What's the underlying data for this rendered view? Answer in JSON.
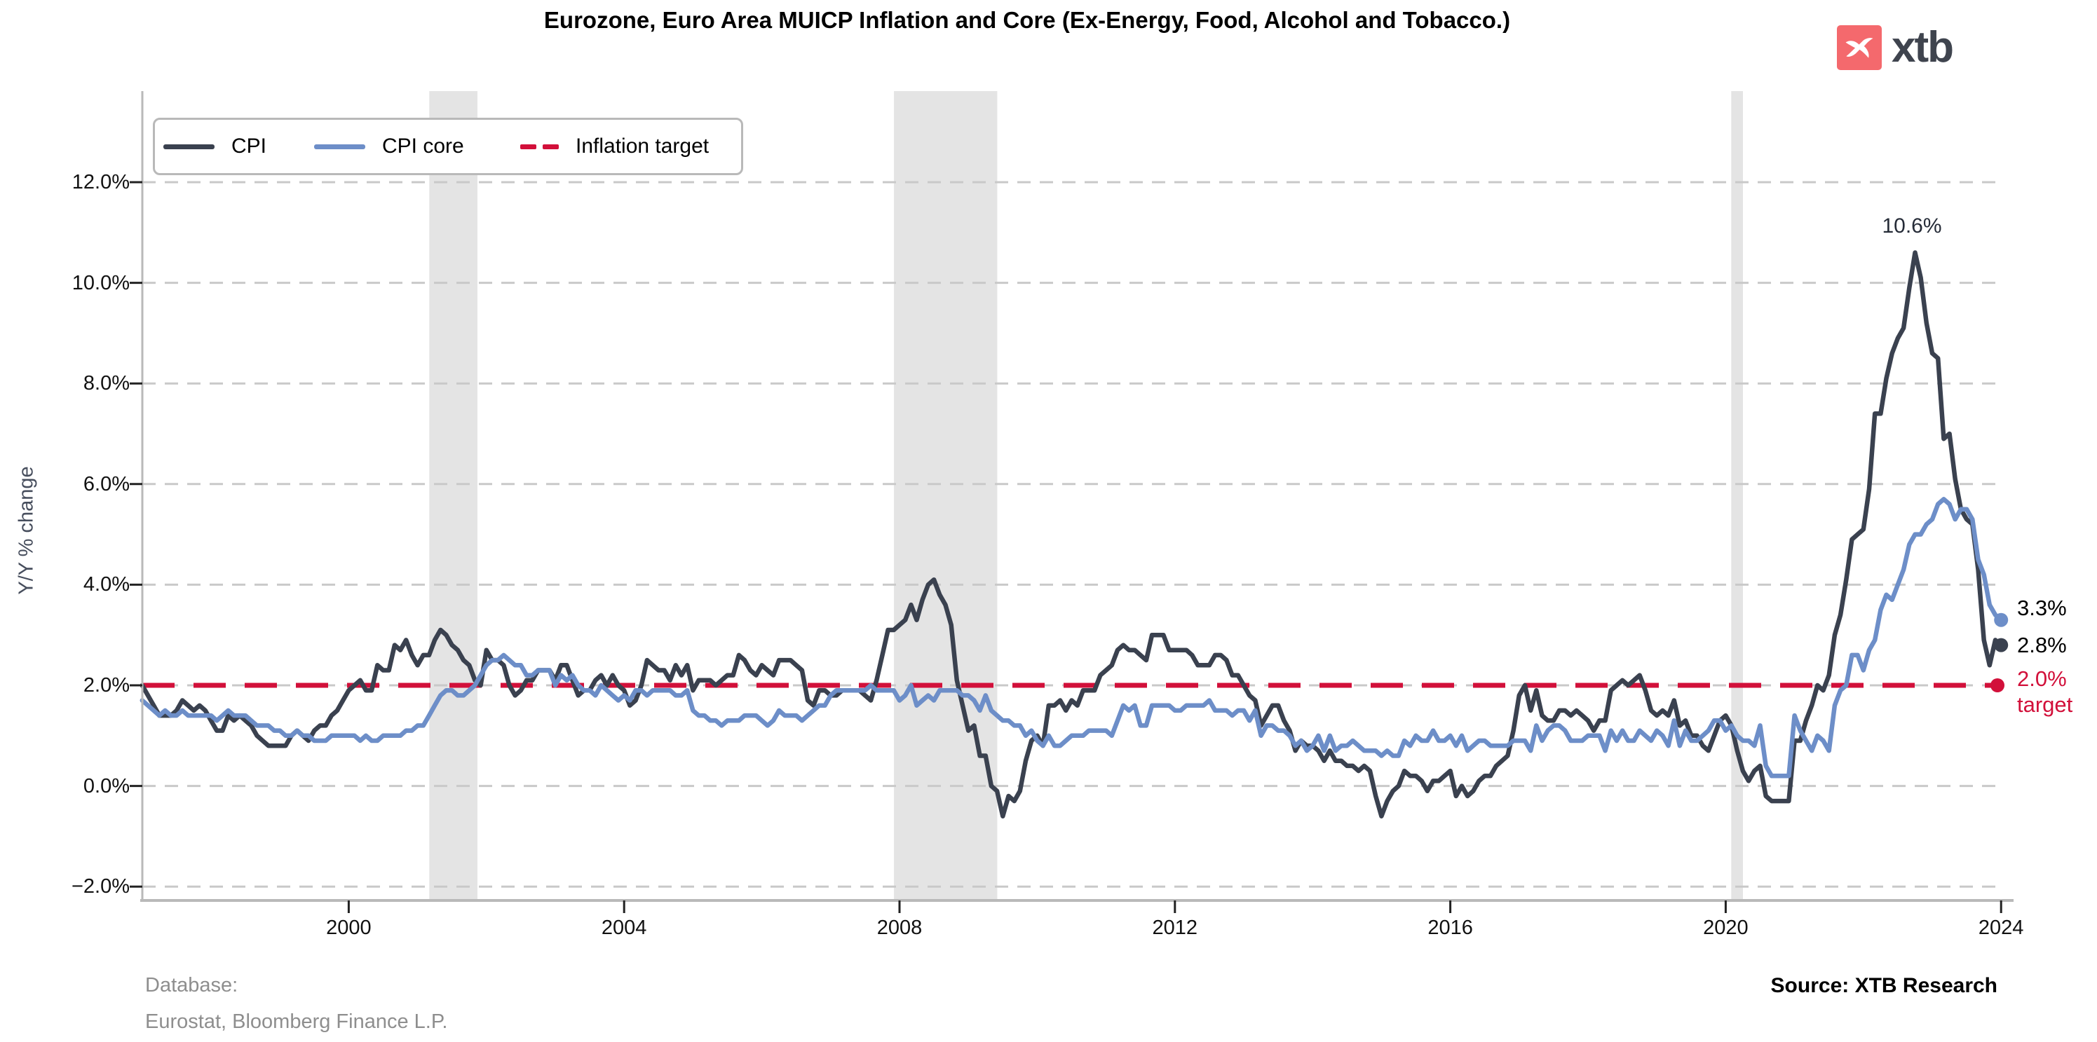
{
  "header": {
    "title": "Eurozone, Euro Area MUICP Inflation and Core (Ex-Energy, Food, Alcohol and Tobacco.)"
  },
  "logo": {
    "text": "xtb",
    "square_color": "#f4696d",
    "text_color": "#3f444e"
  },
  "legend": [
    {
      "label": "CPI",
      "color": "#3a414f",
      "style": "solid"
    },
    {
      "label": "CPI core",
      "color": "#6d8ec8",
      "style": "solid"
    },
    {
      "label": "Inflation target",
      "color": "#d2103a",
      "style": "dashed"
    }
  ],
  "axes": {
    "y_label": "Y/Y % change",
    "y_ticks": [
      {
        "value": 12,
        "label": "12.0%"
      },
      {
        "value": 10,
        "label": "10.0%"
      },
      {
        "value": 8,
        "label": "8.0%"
      },
      {
        "value": 6,
        "label": "6.0%"
      },
      {
        "value": 4,
        "label": "4.0%"
      },
      {
        "value": 2,
        "label": "2.0%"
      },
      {
        "value": 0,
        "label": "0.0%"
      },
      {
        "value": -2,
        "label": "−2.0%"
      }
    ],
    "x_ticks": [
      {
        "value": 2000,
        "label": "2000"
      },
      {
        "value": 2004,
        "label": "2004"
      },
      {
        "value": 2008,
        "label": "2008"
      },
      {
        "value": 2012,
        "label": "2012"
      },
      {
        "value": 2016,
        "label": "2016"
      },
      {
        "value": 2020,
        "label": "2020"
      },
      {
        "value": 2024,
        "label": "2024"
      }
    ]
  },
  "annotations": {
    "peak": "10.6%",
    "core_end": "3.3%",
    "cpi_end": "2.8%",
    "target_line1": "2.0%",
    "target_line2": "target"
  },
  "footer": {
    "database_line1": "Database:",
    "database_line2": "Eurostat, Bloomberg Finance L.P.",
    "source": "Source: XTB Research"
  },
  "colors": {
    "cpi": "#3a414f",
    "core": "#6d8ec8",
    "target": "#d2103a",
    "grid": "#c9c9c9",
    "band": "#e4e4e4",
    "spine": "#b9b9b9",
    "tick": "#222222"
  },
  "chart_data": {
    "type": "line",
    "title": "Eurozone, Euro Area MUICP Inflation and Core (Ex-Energy, Food, Alcohol and Tobacco.)",
    "ylabel": "Y/Y % change",
    "ylim": [
      -2.3,
      13.7
    ],
    "grid": true,
    "legend_position": "upper left",
    "x_start_year": 1997,
    "x_frequency": "monthly",
    "x_end": "2024-01",
    "x_tick_years": [
      2000,
      2004,
      2008,
      2012,
      2016,
      2020,
      2024
    ],
    "y_tick_pct": [
      12,
      10,
      8,
      6,
      4,
      2,
      0,
      -2
    ],
    "target": {
      "label": "Inflation target",
      "value": 2.0,
      "color": "#d2103a",
      "end_label": "2.0% target"
    },
    "shaded_periods": [
      {
        "from": 2001.17,
        "to": 2001.87
      },
      {
        "from": 2007.92,
        "to": 2009.42
      },
      {
        "from": 2020.08,
        "to": 2020.25
      }
    ],
    "annotations": [
      {
        "text": "10.6%",
        "x": 2022.79,
        "y": 10.6
      },
      {
        "text": "3.3%",
        "x": 2024.0,
        "y": 3.3
      },
      {
        "text": "2.8%",
        "x": 2024.0,
        "y": 2.8
      }
    ],
    "series": [
      {
        "name": "CPI",
        "color": "#3a414f",
        "end_value": 2.8,
        "monthly_yoy_pct": [
          2.0,
          1.8,
          1.6,
          1.4,
          1.4,
          1.4,
          1.5,
          1.7,
          1.6,
          1.5,
          1.6,
          1.5,
          1.3,
          1.1,
          1.1,
          1.4,
          1.3,
          1.4,
          1.3,
          1.2,
          1.0,
          0.9,
          0.8,
          0.8,
          0.8,
          0.8,
          1.0,
          1.1,
          1.0,
          0.9,
          1.1,
          1.2,
          1.2,
          1.4,
          1.5,
          1.7,
          1.9,
          2.0,
          2.1,
          1.9,
          1.9,
          2.4,
          2.3,
          2.3,
          2.8,
          2.7,
          2.9,
          2.6,
          2.4,
          2.6,
          2.6,
          2.9,
          3.1,
          3.0,
          2.8,
          2.7,
          2.5,
          2.4,
          2.1,
          2.0,
          2.7,
          2.5,
          2.5,
          2.4,
          2.0,
          1.8,
          1.9,
          2.1,
          2.1,
          2.3,
          2.3,
          2.3,
          2.1,
          2.4,
          2.4,
          2.1,
          1.8,
          1.9,
          1.9,
          2.1,
          2.2,
          2.0,
          2.2,
          2.0,
          1.9,
          1.6,
          1.7,
          2.0,
          2.5,
          2.4,
          2.3,
          2.3,
          2.1,
          2.4,
          2.2,
          2.4,
          1.9,
          2.1,
          2.1,
          2.1,
          2.0,
          2.1,
          2.2,
          2.2,
          2.6,
          2.5,
          2.3,
          2.2,
          2.4,
          2.3,
          2.2,
          2.5,
          2.5,
          2.5,
          2.4,
          2.3,
          1.7,
          1.6,
          1.9,
          1.9,
          1.8,
          1.8,
          1.9,
          1.9,
          1.9,
          1.9,
          1.8,
          1.7,
          2.1,
          2.6,
          3.1,
          3.1,
          3.2,
          3.3,
          3.6,
          3.3,
          3.7,
          4.0,
          4.1,
          3.8,
          3.6,
          3.2,
          2.1,
          1.6,
          1.1,
          1.2,
          0.6,
          0.6,
          0.0,
          -0.1,
          -0.6,
          -0.2,
          -0.3,
          -0.1,
          0.5,
          0.9,
          1.0,
          0.8,
          1.6,
          1.6,
          1.7,
          1.5,
          1.7,
          1.6,
          1.9,
          1.9,
          1.9,
          2.2,
          2.3,
          2.4,
          2.7,
          2.8,
          2.7,
          2.7,
          2.6,
          2.5,
          3.0,
          3.0,
          3.0,
          2.7,
          2.7,
          2.7,
          2.7,
          2.6,
          2.4,
          2.4,
          2.4,
          2.6,
          2.6,
          2.5,
          2.2,
          2.2,
          2.0,
          1.8,
          1.7,
          1.2,
          1.4,
          1.6,
          1.6,
          1.3,
          1.1,
          0.7,
          0.9,
          0.8,
          0.8,
          0.7,
          0.5,
          0.7,
          0.5,
          0.5,
          0.4,
          0.4,
          0.3,
          0.4,
          0.3,
          -0.2,
          -0.6,
          -0.3,
          -0.1,
          0.0,
          0.3,
          0.2,
          0.2,
          0.1,
          -0.1,
          0.1,
          0.1,
          0.2,
          0.3,
          -0.2,
          0.0,
          -0.2,
          -0.1,
          0.1,
          0.2,
          0.2,
          0.4,
          0.5,
          0.6,
          1.1,
          1.8,
          2.0,
          1.5,
          1.9,
          1.4,
          1.3,
          1.3,
          1.5,
          1.5,
          1.4,
          1.5,
          1.4,
          1.3,
          1.1,
          1.3,
          1.3,
          1.9,
          2.0,
          2.1,
          2.0,
          2.1,
          2.2,
          1.9,
          1.5,
          1.4,
          1.5,
          1.4,
          1.7,
          1.2,
          1.3,
          1.0,
          1.0,
          0.8,
          0.7,
          1.0,
          1.3,
          1.4,
          1.2,
          0.7,
          0.3,
          0.1,
          0.3,
          0.4,
          -0.2,
          -0.3,
          -0.3,
          -0.3,
          -0.3,
          0.9,
          0.9,
          1.3,
          1.6,
          2.0,
          1.9,
          2.2,
          3.0,
          3.4,
          4.1,
          4.9,
          5.0,
          5.1,
          5.9,
          7.4,
          7.4,
          8.1,
          8.6,
          8.9,
          9.1,
          9.9,
          10.6,
          10.1,
          9.2,
          8.6,
          8.5,
          6.9,
          7.0,
          6.1,
          5.5,
          5.3,
          5.2,
          4.3,
          2.9,
          2.4,
          2.9,
          2.8
        ]
      },
      {
        "name": "CPI core",
        "color": "#6d8ec8",
        "end_value": 3.3,
        "monthly_yoy_pct": [
          1.7,
          1.6,
          1.5,
          1.4,
          1.5,
          1.4,
          1.4,
          1.5,
          1.4,
          1.4,
          1.4,
          1.4,
          1.4,
          1.3,
          1.4,
          1.5,
          1.4,
          1.4,
          1.4,
          1.3,
          1.2,
          1.2,
          1.2,
          1.1,
          1.1,
          1.0,
          1.0,
          1.1,
          1.0,
          1.0,
          0.9,
          0.9,
          0.9,
          1.0,
          1.0,
          1.0,
          1.0,
          1.0,
          0.9,
          1.0,
          0.9,
          0.9,
          1.0,
          1.0,
          1.0,
          1.0,
          1.1,
          1.1,
          1.2,
          1.2,
          1.4,
          1.6,
          1.8,
          1.9,
          1.9,
          1.8,
          1.8,
          1.9,
          2.0,
          2.2,
          2.4,
          2.5,
          2.5,
          2.6,
          2.5,
          2.4,
          2.4,
          2.2,
          2.2,
          2.3,
          2.3,
          2.3,
          2.0,
          2.2,
          2.1,
          2.2,
          2.0,
          1.9,
          1.9,
          1.8,
          2.0,
          1.9,
          1.8,
          1.7,
          1.8,
          1.7,
          1.9,
          1.9,
          1.8,
          1.9,
          1.9,
          1.9,
          1.9,
          1.8,
          1.8,
          1.9,
          1.5,
          1.4,
          1.4,
          1.3,
          1.3,
          1.2,
          1.3,
          1.3,
          1.3,
          1.4,
          1.4,
          1.4,
          1.3,
          1.2,
          1.3,
          1.5,
          1.4,
          1.4,
          1.4,
          1.3,
          1.4,
          1.5,
          1.6,
          1.6,
          1.8,
          1.9,
          1.9,
          1.9,
          1.9,
          1.9,
          1.9,
          2.0,
          1.9,
          1.9,
          1.9,
          1.9,
          1.7,
          1.8,
          2.0,
          1.6,
          1.7,
          1.8,
          1.7,
          1.9,
          1.9,
          1.9,
          1.9,
          1.8,
          1.8,
          1.7,
          1.5,
          1.8,
          1.5,
          1.4,
          1.3,
          1.3,
          1.2,
          1.2,
          1.0,
          1.1,
          0.9,
          0.8,
          1.0,
          0.8,
          0.8,
          0.9,
          1.0,
          1.0,
          1.0,
          1.1,
          1.1,
          1.1,
          1.1,
          1.0,
          1.3,
          1.6,
          1.5,
          1.6,
          1.2,
          1.2,
          1.6,
          1.6,
          1.6,
          1.6,
          1.5,
          1.5,
          1.6,
          1.6,
          1.6,
          1.6,
          1.7,
          1.5,
          1.5,
          1.5,
          1.4,
          1.5,
          1.5,
          1.3,
          1.5,
          1.0,
          1.2,
          1.2,
          1.1,
          1.1,
          1.0,
          0.8,
          0.9,
          0.7,
          0.8,
          1.0,
          0.7,
          1.0,
          0.7,
          0.8,
          0.8,
          0.9,
          0.8,
          0.7,
          0.7,
          0.7,
          0.6,
          0.7,
          0.6,
          0.6,
          0.9,
          0.8,
          1.0,
          0.9,
          0.9,
          1.1,
          0.9,
          0.9,
          1.0,
          0.8,
          1.0,
          0.7,
          0.8,
          0.9,
          0.9,
          0.8,
          0.8,
          0.8,
          0.8,
          0.9,
          0.9,
          0.9,
          0.7,
          1.2,
          0.9,
          1.1,
          1.2,
          1.2,
          1.1,
          0.9,
          0.9,
          0.9,
          1.0,
          1.0,
          1.0,
          0.7,
          1.1,
          0.9,
          1.1,
          0.9,
          0.9,
          1.1,
          1.0,
          0.9,
          1.1,
          1.0,
          0.8,
          1.3,
          0.8,
          1.1,
          0.9,
          0.9,
          1.0,
          1.1,
          1.3,
          1.3,
          1.1,
          1.2,
          1.0,
          0.9,
          0.9,
          0.8,
          1.2,
          0.4,
          0.2,
          0.2,
          0.2,
          0.2,
          1.4,
          1.1,
          0.9,
          0.7,
          1.0,
          0.9,
          0.7,
          1.6,
          1.9,
          2.0,
          2.6,
          2.6,
          2.3,
          2.7,
          2.9,
          3.5,
          3.8,
          3.7,
          4.0,
          4.3,
          4.8,
          5.0,
          5.0,
          5.2,
          5.3,
          5.6,
          5.7,
          5.6,
          5.3,
          5.5,
          5.5,
          5.3,
          4.5,
          4.2,
          3.6,
          3.4,
          3.3
        ]
      }
    ]
  }
}
